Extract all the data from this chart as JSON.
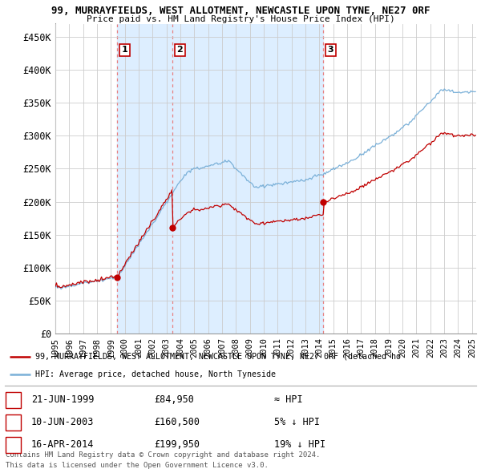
{
  "title1": "99, MURRAYFIELDS, WEST ALLOTMENT, NEWCASTLE UPON TYNE, NE27 0RF",
  "title2": "Price paid vs. HM Land Registry's House Price Index (HPI)",
  "ylim": [
    0,
    470000
  ],
  "yticks": [
    0,
    50000,
    100000,
    150000,
    200000,
    250000,
    300000,
    350000,
    400000,
    450000
  ],
  "ytick_labels": [
    "£0",
    "£50K",
    "£100K",
    "£150K",
    "£200K",
    "£250K",
    "£300K",
    "£350K",
    "£400K",
    "£450K"
  ],
  "hpi_color": "#7ab0d8",
  "price_color": "#c00000",
  "vline_color": "#e88080",
  "shade_color": "#ddeeff",
  "purchases": [
    {
      "date_num": 1999.47,
      "price": 84950,
      "label": "1",
      "date_str": "21-JUN-1999",
      "price_str": "£84,950",
      "vs_hpi": "≈ HPI"
    },
    {
      "date_num": 2003.44,
      "price": 160500,
      "label": "2",
      "date_str": "10-JUN-2003",
      "price_str": "£160,500",
      "vs_hpi": "5% ↓ HPI"
    },
    {
      "date_num": 2014.29,
      "price": 199950,
      "label": "3",
      "date_str": "16-APR-2014",
      "price_str": "£199,950",
      "vs_hpi": "19% ↓ HPI"
    }
  ],
  "legend_line1": "99, MURRAYFIELDS, WEST ALLOTMENT, NEWCASTLE UPON TYNE, NE27 0RF (detached ho",
  "legend_line2": "HPI: Average price, detached house, North Tyneside",
  "footer1": "Contains HM Land Registry data © Crown copyright and database right 2024.",
  "footer2": "This data is licensed under the Open Government Licence v3.0.",
  "xlim_left": 1995.0,
  "xlim_right": 2025.3
}
